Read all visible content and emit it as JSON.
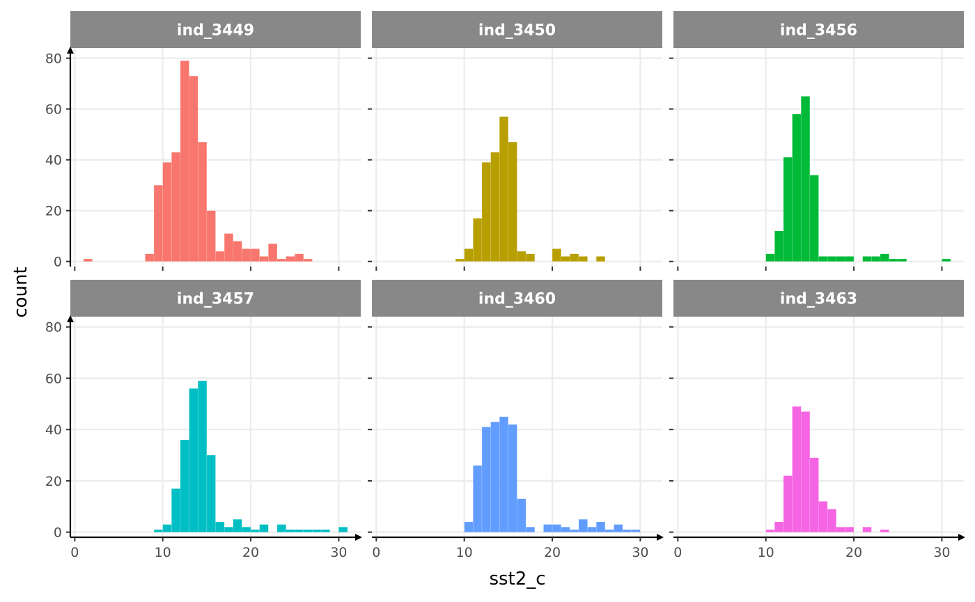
{
  "chart_data": {
    "type": "bar",
    "subtype": "faceted-histogram",
    "xlabel": "sst2_c",
    "ylabel": "count",
    "xlim": [
      -0.5,
      32.5
    ],
    "ylim": [
      -2,
      84
    ],
    "x_ticks": [
      0,
      10,
      20,
      30
    ],
    "y_ticks": [
      0,
      20,
      40,
      60,
      80
    ],
    "bin_width": 1,
    "grid": true,
    "facets": [
      {
        "name": "ind_3449",
        "color": "#F8766D",
        "bins": [
          [
            1,
            1
          ],
          [
            8,
            3
          ],
          [
            9,
            30
          ],
          [
            10,
            39
          ],
          [
            11,
            43
          ],
          [
            12,
            79
          ],
          [
            13,
            73
          ],
          [
            14,
            47
          ],
          [
            15,
            20
          ],
          [
            16,
            4
          ],
          [
            17,
            11
          ],
          [
            18,
            8
          ],
          [
            19,
            5
          ],
          [
            20,
            5
          ],
          [
            21,
            2
          ],
          [
            22,
            7
          ],
          [
            23,
            1
          ],
          [
            24,
            2
          ],
          [
            25,
            3
          ],
          [
            26,
            1
          ]
        ]
      },
      {
        "name": "ind_3450",
        "color": "#B79F00",
        "bins": [
          [
            9,
            1
          ],
          [
            10,
            5
          ],
          [
            11,
            17
          ],
          [
            12,
            39
          ],
          [
            13,
            43
          ],
          [
            14,
            57
          ],
          [
            15,
            47
          ],
          [
            16,
            4
          ],
          [
            17,
            3
          ],
          [
            20,
            5
          ],
          [
            21,
            2
          ],
          [
            22,
            3
          ],
          [
            23,
            2
          ],
          [
            25,
            2
          ]
        ]
      },
      {
        "name": "ind_3456",
        "color": "#00BA38",
        "bins": [
          [
            10,
            3
          ],
          [
            11,
            12
          ],
          [
            12,
            41
          ],
          [
            13,
            58
          ],
          [
            14,
            65
          ],
          [
            15,
            34
          ],
          [
            16,
            2
          ],
          [
            17,
            2
          ],
          [
            18,
            2
          ],
          [
            19,
            2
          ],
          [
            21,
            2
          ],
          [
            22,
            2
          ],
          [
            23,
            3
          ],
          [
            24,
            1
          ],
          [
            25,
            1
          ],
          [
            30,
            1
          ]
        ]
      },
      {
        "name": "ind_3457",
        "color": "#00BFC4",
        "bins": [
          [
            9,
            1
          ],
          [
            10,
            3
          ],
          [
            11,
            17
          ],
          [
            12,
            36
          ],
          [
            13,
            56
          ],
          [
            14,
            59
          ],
          [
            15,
            30
          ],
          [
            16,
            4
          ],
          [
            17,
            2
          ],
          [
            18,
            5
          ],
          [
            19,
            2
          ],
          [
            20,
            1
          ],
          [
            21,
            3
          ],
          [
            23,
            3
          ],
          [
            24,
            1
          ],
          [
            25,
            1
          ],
          [
            26,
            1
          ],
          [
            27,
            1
          ],
          [
            28,
            1
          ],
          [
            30,
            2
          ]
        ]
      },
      {
        "name": "ind_3460",
        "color": "#619CFF",
        "bins": [
          [
            10,
            4
          ],
          [
            11,
            26
          ],
          [
            12,
            41
          ],
          [
            13,
            43
          ],
          [
            14,
            45
          ],
          [
            15,
            42
          ],
          [
            16,
            13
          ],
          [
            17,
            2
          ],
          [
            19,
            3
          ],
          [
            20,
            3
          ],
          [
            21,
            2
          ],
          [
            22,
            1
          ],
          [
            23,
            5
          ],
          [
            24,
            2
          ],
          [
            25,
            4
          ],
          [
            26,
            1
          ],
          [
            27,
            3
          ],
          [
            28,
            1
          ],
          [
            29,
            1
          ]
        ]
      },
      {
        "name": "ind_3463",
        "color": "#F564E3",
        "bins": [
          [
            10,
            1
          ],
          [
            11,
            4
          ],
          [
            12,
            22
          ],
          [
            13,
            49
          ],
          [
            14,
            47
          ],
          [
            15,
            29
          ],
          [
            16,
            12
          ],
          [
            17,
            9
          ],
          [
            18,
            2
          ],
          [
            19,
            2
          ],
          [
            21,
            2
          ],
          [
            23,
            1
          ]
        ]
      }
    ]
  }
}
